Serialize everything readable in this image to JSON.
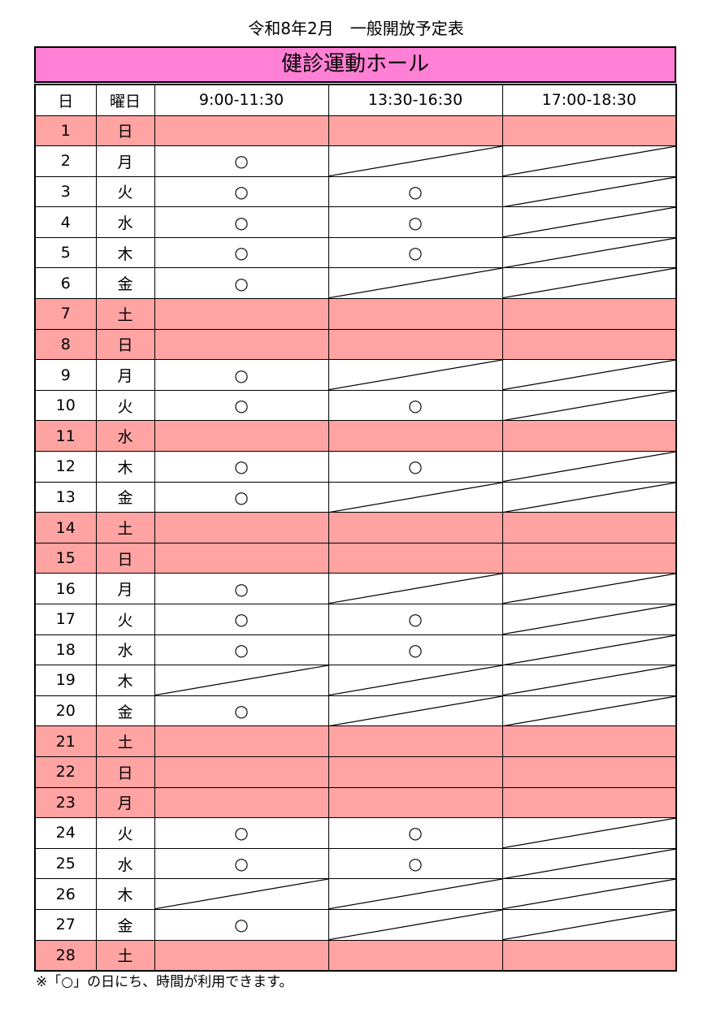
{
  "title": "令和8年2月　一般開放予定表",
  "facility": "健診運動ホール",
  "headers": [
    "日",
    "曜日",
    "9:00-11:30",
    "13:30-16:30",
    "17:00-18:30"
  ],
  "symbols": {
    "open": "○"
  },
  "rows": [
    {
      "day": "1",
      "weekday": "日",
      "closed": true,
      "slots": [
        "",
        "",
        ""
      ]
    },
    {
      "day": "2",
      "weekday": "月",
      "closed": false,
      "slots": [
        "open",
        "na",
        "na"
      ]
    },
    {
      "day": "3",
      "weekday": "火",
      "closed": false,
      "slots": [
        "open",
        "open",
        "na"
      ]
    },
    {
      "day": "4",
      "weekday": "水",
      "closed": false,
      "slots": [
        "open",
        "open",
        "na"
      ]
    },
    {
      "day": "5",
      "weekday": "木",
      "closed": false,
      "slots": [
        "open",
        "open",
        "na"
      ]
    },
    {
      "day": "6",
      "weekday": "金",
      "closed": false,
      "slots": [
        "open",
        "na",
        "na"
      ]
    },
    {
      "day": "7",
      "weekday": "土",
      "closed": true,
      "slots": [
        "",
        "",
        ""
      ]
    },
    {
      "day": "8",
      "weekday": "日",
      "closed": true,
      "slots": [
        "",
        "",
        ""
      ]
    },
    {
      "day": "9",
      "weekday": "月",
      "closed": false,
      "slots": [
        "open",
        "na",
        "na"
      ]
    },
    {
      "day": "10",
      "weekday": "火",
      "closed": false,
      "slots": [
        "open",
        "open",
        "na"
      ]
    },
    {
      "day": "11",
      "weekday": "水",
      "closed": true,
      "slots": [
        "",
        "",
        ""
      ]
    },
    {
      "day": "12",
      "weekday": "木",
      "closed": false,
      "slots": [
        "open",
        "open",
        "na"
      ]
    },
    {
      "day": "13",
      "weekday": "金",
      "closed": false,
      "slots": [
        "open",
        "na",
        "na"
      ]
    },
    {
      "day": "14",
      "weekday": "土",
      "closed": true,
      "slots": [
        "",
        "",
        ""
      ]
    },
    {
      "day": "15",
      "weekday": "日",
      "closed": true,
      "slots": [
        "",
        "",
        ""
      ]
    },
    {
      "day": "16",
      "weekday": "月",
      "closed": false,
      "slots": [
        "open",
        "na",
        "na"
      ]
    },
    {
      "day": "17",
      "weekday": "火",
      "closed": false,
      "slots": [
        "open",
        "open",
        "na"
      ]
    },
    {
      "day": "18",
      "weekday": "水",
      "closed": false,
      "slots": [
        "open",
        "open",
        "na"
      ]
    },
    {
      "day": "19",
      "weekday": "木",
      "closed": false,
      "slots": [
        "na",
        "na",
        "na"
      ]
    },
    {
      "day": "20",
      "weekday": "金",
      "closed": false,
      "slots": [
        "open",
        "na",
        "na"
      ]
    },
    {
      "day": "21",
      "weekday": "土",
      "closed": true,
      "slots": [
        "",
        "",
        ""
      ]
    },
    {
      "day": "22",
      "weekday": "日",
      "closed": true,
      "slots": [
        "",
        "",
        ""
      ]
    },
    {
      "day": "23",
      "weekday": "月",
      "closed": true,
      "slots": [
        "",
        "",
        ""
      ]
    },
    {
      "day": "24",
      "weekday": "火",
      "closed": false,
      "slots": [
        "open",
        "open",
        "na"
      ]
    },
    {
      "day": "25",
      "weekday": "水",
      "closed": false,
      "slots": [
        "open",
        "open",
        "na"
      ]
    },
    {
      "day": "26",
      "weekday": "木",
      "closed": false,
      "slots": [
        "na",
        "na",
        "na"
      ]
    },
    {
      "day": "27",
      "weekday": "金",
      "closed": false,
      "slots": [
        "open",
        "na",
        "na"
      ]
    },
    {
      "day": "28",
      "weekday": "土",
      "closed": true,
      "slots": [
        "",
        "",
        ""
      ]
    }
  ],
  "footnote": "※「○」の日にち、時間が利用できます。",
  "colors": {
    "banner": "#ff80d4",
    "closed_row": "#ffa3a3"
  }
}
